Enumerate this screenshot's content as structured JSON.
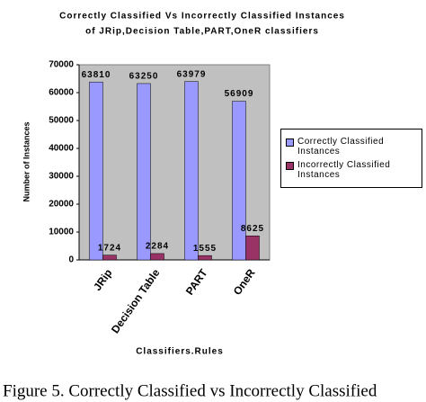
{
  "chart_data": {
    "type": "bar",
    "title": [
      "Correctly Classified Vs Incorrectly Classified Instances",
      "of JRip,Decision Table,PART,OneR classifiers"
    ],
    "categories": [
      "JRip",
      "Decision Table",
      "PART",
      "OneR"
    ],
    "series": [
      {
        "name": "Correctly Classified Instances",
        "color": "#9999ff",
        "values": [
          63810,
          63250,
          63979,
          56909
        ]
      },
      {
        "name": "Incorrectly Classified Instances",
        "color": "#993366",
        "values": [
          1724,
          2284,
          1555,
          8625
        ]
      }
    ],
    "y_label": "Number of Instances",
    "x_label": "Classifiers.Rules",
    "ylim": [
      0,
      70000
    ],
    "yticks": [
      0,
      10000,
      20000,
      30000,
      40000,
      50000,
      60000,
      70000
    ],
    "caption": "Figure 5. Correctly Classified vs Incorrectly Classified"
  }
}
